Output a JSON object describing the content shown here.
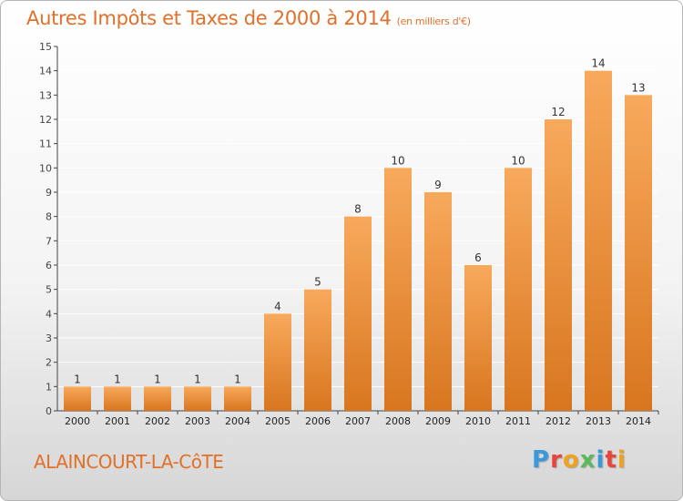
{
  "header": {
    "title": "Autres Impôts et Taxes de 2000 à 2014",
    "subtitle": "(en milliers d'€)"
  },
  "footer": {
    "commune": "ALAINCOURT-LA-CôTE",
    "logo_letters": [
      "P",
      "r",
      "o",
      "x",
      "i",
      "t",
      "i"
    ],
    "logo_colors": [
      "#3a9ad9",
      "#e8463a",
      "#f0a21f",
      "#5cb85c",
      "#3a9ad9",
      "#e8463a",
      "#f0a21f"
    ]
  },
  "colors": {
    "title": "#e1702a",
    "bar_light": "#f8a95c",
    "bar_dark": "#d8761f",
    "axis": "#444444",
    "grid": "#ffffff"
  },
  "chart_data": {
    "type": "bar",
    "title": "Autres Impôts et Taxes de 2000 à 2014",
    "categories": [
      "2000",
      "2001",
      "2002",
      "2003",
      "2004",
      "2005",
      "2006",
      "2007",
      "2008",
      "2009",
      "2010",
      "2011",
      "2012",
      "2013",
      "2014"
    ],
    "values": [
      1,
      1,
      1,
      1,
      1,
      4,
      5,
      8,
      10,
      9,
      6,
      10,
      12,
      14,
      13
    ],
    "yticks": [
      0,
      1,
      2,
      3,
      4,
      5,
      6,
      7,
      8,
      9,
      10,
      11,
      12,
      13,
      14,
      15
    ],
    "ylim": [
      0,
      15
    ],
    "grid": true
  }
}
